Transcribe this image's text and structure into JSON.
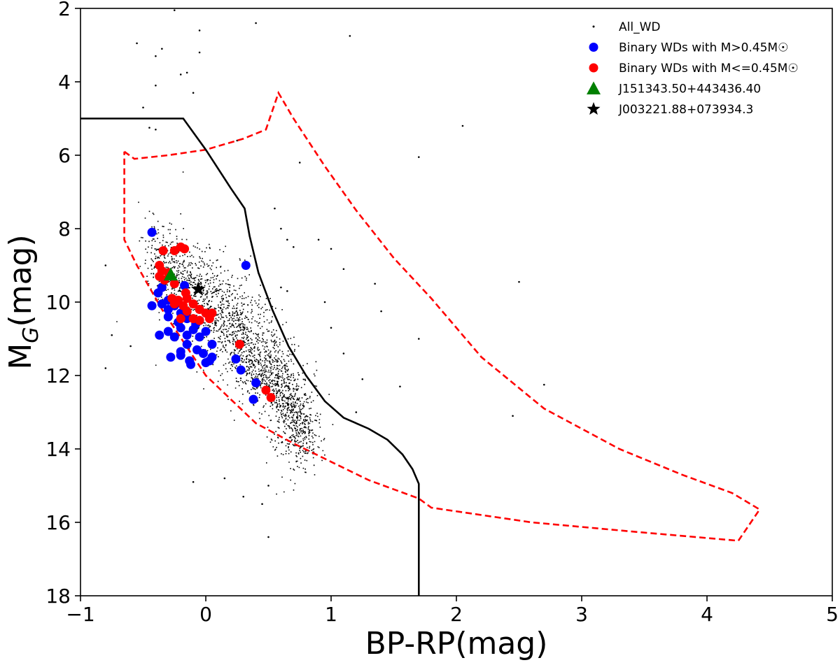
{
  "chart_data": {
    "type": "scatter",
    "title": "",
    "xlabel": "BP-RP(mag)",
    "ylabel_main": "M",
    "ylabel_sub": "G",
    "ylabel_tail": "(mag)",
    "xlim": [
      -1,
      5
    ],
    "ylim": [
      18,
      2
    ],
    "y_inverted": true,
    "grid": false,
    "legend_position": "top-right",
    "xticks": [
      -1,
      0,
      1,
      2,
      3,
      4,
      5
    ],
    "xtick_labels": [
      "−1",
      "0",
      "1",
      "2",
      "3",
      "4",
      "5"
    ],
    "yticks": [
      2,
      4,
      6,
      8,
      10,
      12,
      14,
      16,
      18
    ],
    "ytick_labels": [
      "2",
      "4",
      "6",
      "8",
      "10",
      "12",
      "14",
      "16",
      "18"
    ],
    "legend": [
      {
        "label": "All_WD",
        "marker": "dot",
        "color": "#000000"
      },
      {
        "label": "Binary WDs with M>0.45M☉",
        "marker": "circle",
        "color": "#0000ff"
      },
      {
        "label": "Binary WDs with M<=0.45M☉",
        "marker": "circle",
        "color": "#ff0000"
      },
      {
        "label": "J151343.50+443436.40",
        "marker": "triangle",
        "color": "#008000"
      },
      {
        "label": "J003221.88+073934.3",
        "marker": "star",
        "color": "#000000"
      }
    ],
    "all_wd_sample": {
      "n_points": 9000,
      "seed": 7,
      "sequence_note": "Dense white-dwarf cooling sequence from (BP-RP,MG)=(-0.4,8.5) to (0.8,14); sparse outliers across plot"
    },
    "all_wd_outliers": [
      [
        -0.25,
        2.05
      ],
      [
        -0.05,
        2.6
      ],
      [
        0.4,
        2.4
      ],
      [
        1.15,
        2.75
      ],
      [
        -0.55,
        2.95
      ],
      [
        -0.4,
        3.3
      ],
      [
        -0.35,
        3.1
      ],
      [
        -0.05,
        3.2
      ],
      [
        -0.2,
        3.8
      ],
      [
        -0.15,
        3.75
      ],
      [
        -0.4,
        4.1
      ],
      [
        -0.1,
        4.3
      ],
      [
        -0.5,
        4.7
      ],
      [
        -0.45,
        5.25
      ],
      [
        -0.4,
        5.3
      ],
      [
        2.05,
        5.2
      ],
      [
        1.7,
        6.05
      ],
      [
        0.75,
        6.2
      ],
      [
        0.55,
        7.45
      ],
      [
        0.25,
        5.6
      ],
      [
        0.6,
        8.0
      ],
      [
        0.9,
        8.3
      ],
      [
        0.65,
        8.3
      ],
      [
        0.7,
        8.5
      ],
      [
        1.0,
        8.55
      ],
      [
        1.1,
        9.1
      ],
      [
        0.6,
        9.6
      ],
      [
        1.35,
        9.5
      ],
      [
        2.5,
        9.45
      ],
      [
        0.65,
        9.7
      ],
      [
        1.4,
        10.25
      ],
      [
        1.0,
        10.7
      ],
      [
        0.95,
        10.0
      ],
      [
        -0.8,
        9.0
      ],
      [
        -0.75,
        10.9
      ],
      [
        -0.6,
        11.2
      ],
      [
        -0.8,
        11.8
      ],
      [
        1.1,
        11.4
      ],
      [
        1.25,
        12.1
      ],
      [
        1.55,
        12.3
      ],
      [
        2.7,
        12.25
      ],
      [
        1.2,
        13.0
      ],
      [
        2.45,
        13.1
      ],
      [
        1.7,
        11.0
      ],
      [
        0.5,
        16.4
      ],
      [
        0.45,
        15.5
      ],
      [
        0.5,
        15.0
      ],
      [
        -0.1,
        14.9
      ],
      [
        0.15,
        14.8
      ],
      [
        0.3,
        15.3
      ]
    ],
    "series": [
      {
        "name": "Binary WDs with M>0.45M☉",
        "color": "#0000ff",
        "points": [
          [
            -0.43,
            8.1
          ],
          [
            0.32,
            9.0
          ],
          [
            -0.17,
            9.55
          ],
          [
            -0.35,
            9.6
          ],
          [
            -0.38,
            9.75
          ],
          [
            -0.3,
            9.95
          ],
          [
            -0.35,
            10.05
          ],
          [
            -0.25,
            10.1
          ],
          [
            -0.43,
            10.1
          ],
          [
            -0.3,
            10.2
          ],
          [
            -0.2,
            10.3
          ],
          [
            -0.3,
            10.4
          ],
          [
            -0.15,
            10.45
          ],
          [
            -0.05,
            10.5
          ],
          [
            -0.22,
            10.55
          ],
          [
            -0.08,
            10.6
          ],
          [
            -0.2,
            10.7
          ],
          [
            -0.1,
            10.75
          ],
          [
            0.0,
            10.8
          ],
          [
            -0.3,
            10.8
          ],
          [
            -0.15,
            10.9
          ],
          [
            -0.05,
            10.95
          ],
          [
            -0.37,
            10.9
          ],
          [
            -0.25,
            10.95
          ],
          [
            0.05,
            11.15
          ],
          [
            -0.15,
            11.15
          ],
          [
            -0.07,
            11.3
          ],
          [
            -0.02,
            11.4
          ],
          [
            -0.2,
            11.35
          ],
          [
            0.05,
            11.5
          ],
          [
            -0.28,
            11.5
          ],
          [
            -0.13,
            11.6
          ],
          [
            0.0,
            11.65
          ],
          [
            -0.12,
            11.7
          ],
          [
            0.03,
            11.6
          ],
          [
            0.24,
            11.55
          ],
          [
            0.28,
            11.85
          ],
          [
            0.4,
            12.2
          ],
          [
            0.38,
            12.65
          ],
          [
            -0.2,
            11.45
          ]
        ]
      },
      {
        "name": "Binary WDs with M<=0.45M☉",
        "color": "#ff0000",
        "points": [
          [
            -0.34,
            8.6
          ],
          [
            -0.2,
            8.5
          ],
          [
            -0.17,
            8.55
          ],
          [
            -0.25,
            8.6
          ],
          [
            -0.37,
            9.0
          ],
          [
            -0.35,
            9.15
          ],
          [
            -0.3,
            9.2
          ],
          [
            -0.37,
            9.3
          ],
          [
            -0.25,
            9.5
          ],
          [
            -0.33,
            9.4
          ],
          [
            -0.22,
            9.95
          ],
          [
            -0.15,
            9.9
          ],
          [
            -0.25,
            10.05
          ],
          [
            -0.18,
            10.1
          ],
          [
            -0.1,
            10.05
          ],
          [
            -0.15,
            10.25
          ],
          [
            -0.05,
            10.2
          ],
          [
            -0.2,
            10.45
          ],
          [
            0.0,
            10.3
          ],
          [
            -0.05,
            10.5
          ],
          [
            -0.1,
            10.45
          ],
          [
            0.05,
            10.3
          ],
          [
            -0.16,
            9.75
          ],
          [
            0.27,
            11.15
          ],
          [
            0.48,
            12.4
          ],
          [
            0.52,
            12.6
          ],
          [
            -0.27,
            9.9
          ],
          [
            0.03,
            10.45
          ]
        ]
      },
      {
        "name": "J151343.50+443436.40",
        "color": "#008000",
        "points": [
          [
            -0.28,
            9.25
          ]
        ]
      },
      {
        "name": "J003221.88+073934.3",
        "color": "#000000",
        "points": [
          [
            -0.06,
            9.65
          ]
        ]
      }
    ],
    "boundary_black_solid": [
      [
        -1.0,
        5.0
      ],
      [
        -0.18,
        5.0
      ],
      [
        0.0,
        5.85
      ],
      [
        0.2,
        6.9
      ],
      [
        0.31,
        7.45
      ],
      [
        0.35,
        8.2
      ],
      [
        0.42,
        9.2
      ],
      [
        0.53,
        10.2
      ],
      [
        0.66,
        11.2
      ],
      [
        0.8,
        12.0
      ],
      [
        0.95,
        12.7
      ],
      [
        1.1,
        13.15
      ],
      [
        1.3,
        13.45
      ],
      [
        1.45,
        13.75
      ],
      [
        1.57,
        14.15
      ],
      [
        1.65,
        14.55
      ],
      [
        1.7,
        14.95
      ],
      [
        1.7,
        18.0
      ]
    ],
    "boundary_red_dashed": [
      [
        -0.65,
        5.9
      ],
      [
        -0.57,
        6.1
      ],
      [
        -0.3,
        6.0
      ],
      [
        0.0,
        5.85
      ],
      [
        0.3,
        5.55
      ],
      [
        0.48,
        5.3
      ],
      [
        0.58,
        4.3
      ],
      [
        0.7,
        5.0
      ],
      [
        0.95,
        6.3
      ],
      [
        1.2,
        7.5
      ],
      [
        1.5,
        8.8
      ],
      [
        1.8,
        9.9
      ],
      [
        2.2,
        11.5
      ],
      [
        2.7,
        12.9
      ],
      [
        3.3,
        14.0
      ],
      [
        3.8,
        14.7
      ],
      [
        4.2,
        15.2
      ],
      [
        4.42,
        15.65
      ],
      [
        4.25,
        16.5
      ],
      [
        3.4,
        16.25
      ],
      [
        2.6,
        16.0
      ],
      [
        1.8,
        15.6
      ],
      [
        1.7,
        15.35
      ],
      [
        1.3,
        14.85
      ],
      [
        1.0,
        14.35
      ],
      [
        0.7,
        13.85
      ],
      [
        0.4,
        13.3
      ],
      [
        0.0,
        12.0
      ],
      [
        -0.35,
        10.2
      ],
      [
        -0.55,
        9.0
      ],
      [
        -0.65,
        8.3
      ],
      [
        -0.65,
        5.9
      ]
    ]
  }
}
